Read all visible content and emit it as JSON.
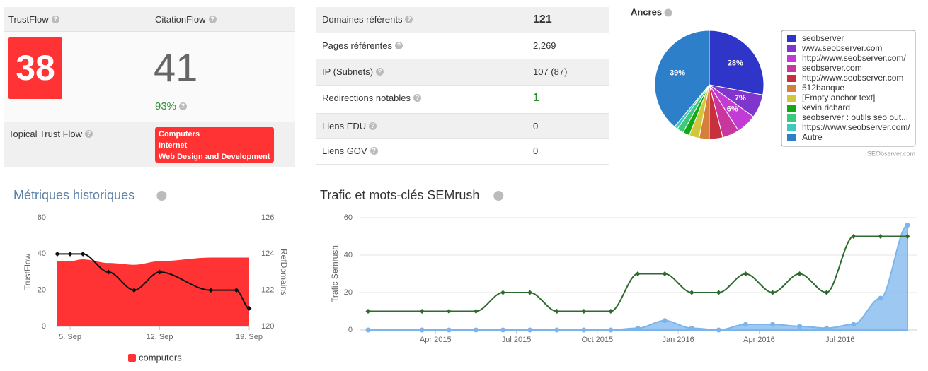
{
  "trust_panel": {
    "trust_flow_label": "TrustFlow",
    "citation_flow_label": "CitationFlow",
    "trust_flow": 38,
    "citation_flow": 41,
    "ratio": "93%",
    "topical_label": "Topical Trust Flow",
    "topics": [
      "Computers",
      "Internet",
      "Web Design and Development"
    ]
  },
  "links_table": {
    "rows": [
      [
        "Domaines référents",
        "121"
      ],
      [
        "Pages référentes",
        "2,269"
      ],
      [
        "IP (Subnets)",
        "107 (87)"
      ],
      [
        "Redirections notables",
        "1"
      ],
      [
        "Liens EDU",
        "0"
      ],
      [
        "Liens GOV",
        "0"
      ]
    ]
  },
  "chart_data": [
    {
      "type": "pie",
      "title": "Ancres",
      "categories": [
        "seobserver",
        "www.seobserver.com",
        "http://www.seobserver.com/",
        "seobserver.com",
        "http://www.seobserver.com",
        "512banque",
        "[Empty anchor text]",
        "kevin richard",
        "seobserver : outils seo out...",
        "https://www.seobserver.com/",
        "Autre"
      ],
      "values": [
        28,
        7,
        6,
        5,
        4,
        3,
        3,
        2,
        2,
        1,
        39
      ],
      "value_labels": [
        "28%",
        "7%",
        "6%",
        null,
        null,
        null,
        null,
        null,
        null,
        null,
        "39%"
      ],
      "colors": [
        "#2f35c9",
        "#8036cc",
        "#c23bd4",
        "#c9379e",
        "#c9303f",
        "#d4803b",
        "#d4c63b",
        "#14a814",
        "#3bc97b",
        "#3bc9c0",
        "#2e7fc9"
      ],
      "legend": "right",
      "credit": "SEObserver.com"
    },
    {
      "type": "line",
      "title": "Métriques historiques",
      "x": [
        4,
        5,
        6,
        8,
        10,
        12,
        16,
        18,
        19
      ],
      "xlim": [
        4,
        19
      ],
      "xticks": [
        {
          "value": 5,
          "label": "5. Sep"
        },
        {
          "value": 12,
          "label": "12. Sep"
        },
        {
          "value": 19,
          "label": "19. Sep"
        }
      ],
      "ylabel": "TrustFlow",
      "ylim": [
        0,
        60
      ],
      "yticks": [
        0,
        20,
        40,
        60
      ],
      "y2label": "RefDomains",
      "y2lim": [
        120,
        126
      ],
      "y2ticks": [
        120,
        122,
        124,
        126
      ],
      "legend": "bottom",
      "series": [
        {
          "name": "computers",
          "type": "area",
          "color": "#ff3333",
          "values": [
            36,
            36,
            37,
            35,
            34,
            36,
            38,
            38,
            38
          ]
        },
        {
          "type": "line",
          "axis": "y2",
          "color": "#111111",
          "values": [
            124,
            124,
            124,
            123,
            122,
            123,
            122,
            122,
            121
          ]
        }
      ]
    },
    {
      "type": "line",
      "title": "Trafic et mots-clés SEMrush",
      "x": [
        "2015-01",
        "2015-03",
        "2015-04",
        "2015-05",
        "2015-06",
        "2015-07",
        "2015-08",
        "2015-09",
        "2015-10",
        "2015-11",
        "2015-12",
        "2016-01",
        "2016-02",
        "2016-03",
        "2016-04",
        "2016-05",
        "2016-06",
        "2016-07",
        "2016-08",
        "2016-09"
      ],
      "xlim": [
        "2015-01",
        "2016-09"
      ],
      "xticks": [
        {
          "value": "2015-04",
          "label": "Apr 2015"
        },
        {
          "value": "2015-07",
          "label": "Jul 2015"
        },
        {
          "value": "2015-10",
          "label": "Oct 2015"
        },
        {
          "value": "2016-01",
          "label": "Jan 2016"
        },
        {
          "value": "2016-04",
          "label": "Apr 2016"
        },
        {
          "value": "2016-07",
          "label": "Jul 2016"
        }
      ],
      "ylabel": "Trafic Semrush",
      "ylim": [
        0,
        60
      ],
      "yticks": [
        0,
        20,
        40,
        60
      ],
      "grid": true,
      "series": [
        {
          "type": "line",
          "color": "#2e6b2e",
          "values": [
            10,
            10,
            10,
            10,
            20,
            20,
            10,
            10,
            10,
            30,
            30,
            20,
            20,
            30,
            20,
            30,
            20,
            50,
            50,
            50
          ]
        },
        {
          "type": "area",
          "color": "#7cb5ec",
          "values": [
            0,
            0,
            0,
            0,
            0,
            0,
            0,
            0,
            0,
            1,
            5,
            1,
            0,
            3,
            3,
            2,
            1,
            3,
            17,
            56
          ]
        }
      ]
    }
  ]
}
